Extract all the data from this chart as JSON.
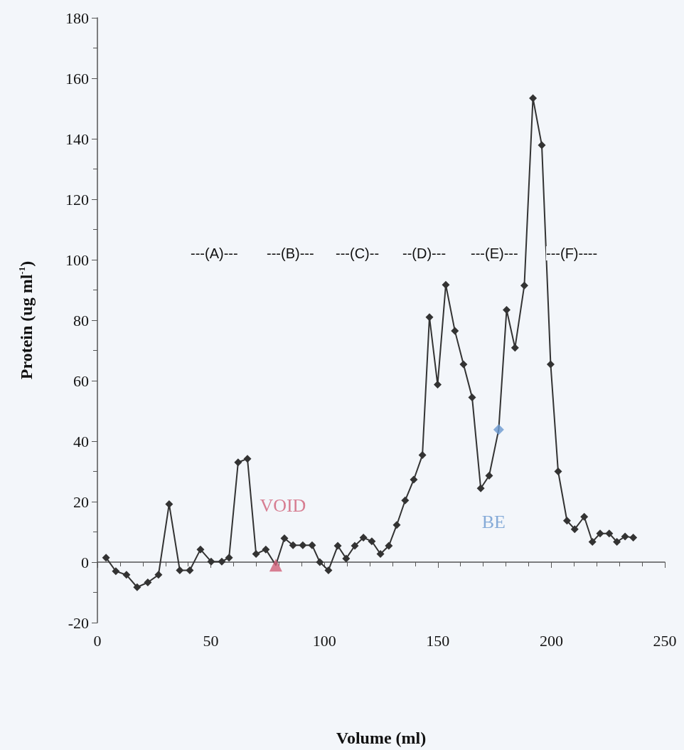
{
  "chart_data": {
    "type": "line",
    "xlabel": "Volume (ml)",
    "ylabel": "Protein (ug ml$^{-1}$)",
    "xlim": [
      0,
      250
    ],
    "xticks": [
      0,
      50,
      100,
      150,
      200,
      250
    ],
    "ylim": [
      -20,
      180
    ],
    "yticks": [
      -20,
      0,
      20,
      40,
      60,
      80,
      100,
      120,
      140,
      160,
      180
    ],
    "legend": false,
    "marker": "diamond",
    "line_style": "solid",
    "series": [
      {
        "color": "#333333",
        "x": [
          3.8,
          8.1,
          12.8,
          17.5,
          22.2,
          26.9,
          31.6,
          36.3,
          40.7,
          45.4,
          50.1,
          54.8,
          58,
          62,
          66.1,
          69.9,
          74.2,
          78.6,
          82.4,
          86.2,
          90.5,
          94.6,
          98,
          101.8,
          105.9,
          109.6,
          113.4,
          117.2,
          120.9,
          124.7,
          128.4,
          131.9,
          135.6,
          139.4,
          143.2,
          146.3,
          149.9,
          153.5,
          157.5,
          161.3,
          165.1,
          168.9,
          172.6,
          176.8,
          180.3,
          184,
          188.1,
          191.9,
          195.8,
          199.7,
          203,
          206.9,
          210.3,
          214.5,
          218.1,
          221.5,
          225.5,
          228.9,
          232.5,
          236.1
        ],
        "values": [
          1.5,
          -3,
          -4.2,
          -8.3,
          -6.7,
          -4.2,
          19.2,
          -2.7,
          -2.7,
          4.2,
          0.2,
          0.2,
          1.5,
          33,
          34.2,
          2.7,
          4.2,
          -1,
          7.9,
          5.6,
          5.6,
          5.6,
          0,
          -2.7,
          5.4,
          1.2,
          5.4,
          8.1,
          6.9,
          2.7,
          5.4,
          12.3,
          20.4,
          27.3,
          35.4,
          81,
          58.7,
          91.7,
          76.5,
          65.4,
          54.5,
          24.4,
          28.6,
          43.8,
          83.4,
          70.9,
          91.5,
          153.4,
          137.9,
          65.4,
          30,
          13.7,
          10.9,
          15,
          6.7,
          9.5,
          9.5,
          6.7,
          8.5,
          8.1
        ]
      },
      {
        "type": "scatter",
        "name": "VOID",
        "color": "#d06078",
        "marker": "triangle",
        "x": [
          78.6
        ],
        "values": [
          -1
        ]
      },
      {
        "type": "scatter",
        "name": "BE",
        "color": "#6a98d0",
        "marker": "diamond",
        "x": [
          176.8
        ],
        "values": [
          43.8
        ]
      }
    ],
    "annotations": [
      "---(A)---",
      "---(B)---",
      "---(C)--",
      "--(D)---",
      "---(E)---",
      "---(F)----"
    ]
  }
}
